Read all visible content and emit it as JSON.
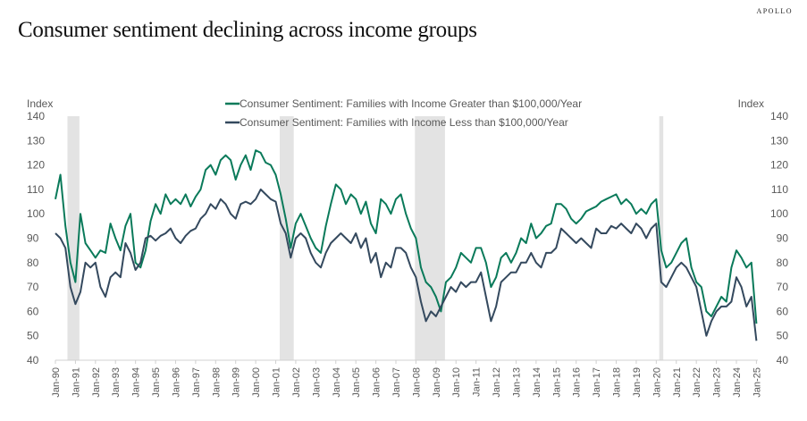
{
  "brand": "APOLLO",
  "title": "Consumer sentiment declining across income groups",
  "chart_data": {
    "type": "line",
    "title": "Consumer sentiment declining across income groups",
    "ylabel_left": "Index",
    "ylabel_right": "Index",
    "ylim": [
      40,
      140
    ],
    "yticks": [
      40,
      50,
      60,
      70,
      80,
      90,
      100,
      110,
      120,
      130,
      140
    ],
    "xlim": [
      1990,
      2025.2
    ],
    "xticks": [
      "Jan-90",
      "Jan-91",
      "Jan-92",
      "Jan-93",
      "Jan-94",
      "Jan-95",
      "Jan-96",
      "Jan-97",
      "Jan-98",
      "Jan-99",
      "Jan-00",
      "Jan-01",
      "Jan-02",
      "Jan-03",
      "Jan-04",
      "Jan-05",
      "Jan-06",
      "Jan-07",
      "Jan-08",
      "Jan-09",
      "Jan-10",
      "Jan-11",
      "Jan-12",
      "Jan-13",
      "Jan-14",
      "Jan-15",
      "Jan-16",
      "Jan-17",
      "Jan-18",
      "Jan-19",
      "Jan-20",
      "Jan-21",
      "Jan-22",
      "Jan-23",
      "Jan-24",
      "Jan-25"
    ],
    "recessions": [
      [
        1990.6,
        1991.2
      ],
      [
        2001.2,
        2001.9
      ],
      [
        2007.95,
        2009.45
      ],
      [
        2020.15,
        2020.35
      ]
    ],
    "legend_position": "top-center",
    "frequency": "quarterly (approx.)",
    "start": 1990,
    "series": [
      {
        "name": "Consumer Sentiment: Families with Income Greater than $100,000/Year",
        "color": "#0a7a5a",
        "values": [
          106,
          116,
          95,
          80,
          72,
          100,
          88,
          85,
          82,
          85,
          84,
          96,
          90,
          85,
          95,
          100,
          80,
          78,
          85,
          97,
          104,
          100,
          108,
          104,
          106,
          104,
          108,
          103,
          107,
          110,
          118,
          120,
          116,
          122,
          124,
          122,
          114,
          120,
          124,
          118,
          126,
          125,
          121,
          120,
          116,
          108,
          98,
          86,
          96,
          100,
          95,
          90,
          86,
          84,
          95,
          104,
          112,
          110,
          104,
          108,
          106,
          100,
          105,
          96,
          92,
          106,
          104,
          100,
          106,
          108,
          100,
          94,
          90,
          78,
          72,
          70,
          66,
          60,
          72,
          74,
          78,
          84,
          82,
          80,
          86,
          86,
          80,
          70,
          74,
          82,
          84,
          80,
          84,
          90,
          88,
          96,
          90,
          92,
          95,
          96,
          104,
          104,
          102,
          98,
          96,
          98,
          101,
          102,
          103,
          105,
          106,
          107,
          108,
          104,
          106,
          104,
          100,
          102,
          100,
          104,
          106,
          85,
          78,
          80,
          84,
          88,
          90,
          78,
          72,
          70,
          60,
          58,
          62,
          66,
          64,
          78,
          85,
          82,
          78,
          80,
          55
        ]
      },
      {
        "name": "Consumer Sentiment: Families with Income Less than $100,000/Year",
        "color": "#34495e",
        "values": [
          92,
          90,
          86,
          70,
          63,
          68,
          80,
          78,
          80,
          70,
          66,
          74,
          76,
          74,
          88,
          84,
          77,
          80,
          90,
          91,
          89,
          91,
          92,
          94,
          90,
          88,
          91,
          93,
          94,
          98,
          100,
          104,
          102,
          106,
          104,
          100,
          98,
          104,
          105,
          104,
          106,
          110,
          108,
          106,
          105,
          96,
          92,
          82,
          90,
          92,
          90,
          84,
          80,
          78,
          84,
          88,
          90,
          92,
          90,
          88,
          92,
          86,
          90,
          80,
          84,
          74,
          80,
          78,
          86,
          86,
          84,
          78,
          74,
          64,
          56,
          60,
          58,
          62,
          66,
          70,
          68,
          72,
          70,
          72,
          72,
          76,
          66,
          56,
          62,
          72,
          74,
          76,
          76,
          80,
          80,
          84,
          80,
          78,
          84,
          84,
          86,
          94,
          92,
          90,
          88,
          90,
          88,
          86,
          94,
          92,
          92,
          95,
          94,
          96,
          94,
          92,
          96,
          94,
          90,
          94,
          96,
          72,
          70,
          74,
          78,
          80,
          78,
          74,
          70,
          60,
          50,
          56,
          60,
          62,
          62,
          64,
          74,
          70,
          62,
          66,
          48
        ]
      }
    ]
  }
}
